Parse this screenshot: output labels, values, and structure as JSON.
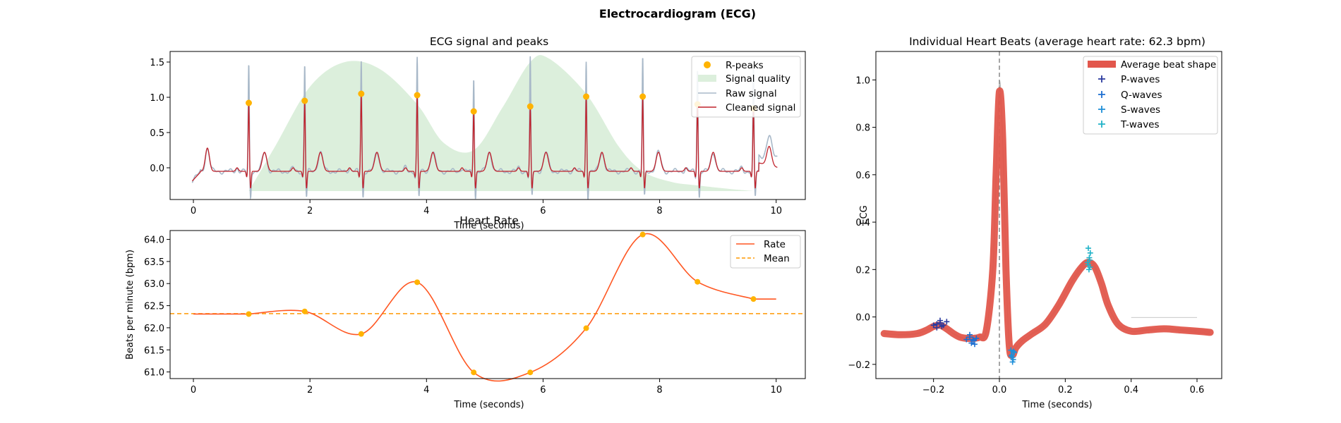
{
  "figure": {
    "suptitle": "Electrocardiogram (ECG)"
  },
  "chart_data": [
    {
      "id": "ecg",
      "type": "line",
      "title": "ECG signal and peaks",
      "xlabel": "Time (seconds)",
      "ylabel": "",
      "xlim": [
        -0.4,
        10.5
      ],
      "ylim": [
        -0.45,
        1.65
      ],
      "xticks": [
        0,
        2,
        4,
        6,
        8,
        10
      ],
      "yticks": [
        0.0,
        0.5,
        1.0,
        1.5
      ],
      "ytick_labels": [
        "0.0",
        "0.5",
        "1.0",
        "1.5"
      ],
      "legend": [
        "R-peaks",
        "Signal quality",
        "Raw signal",
        "Cleaned signal"
      ],
      "legend_position": "upper right",
      "colors": {
        "peaks": "#FFB300",
        "quality": "#dcefdc",
        "raw": "#a8b8c8",
        "clean": "#c0222b"
      },
      "r_peaks": {
        "x": [
          0.95,
          1.91,
          2.88,
          3.84,
          4.81,
          5.78,
          6.74,
          7.71,
          8.65,
          9.61
        ],
        "y": [
          0.92,
          0.95,
          1.05,
          1.03,
          0.8,
          0.87,
          1.01,
          1.01,
          0.9,
          0.84
        ]
      },
      "raw_r_peaks": [
        1.47,
        1.48,
        1.53,
        1.56,
        1.3,
        1.56,
        1.53,
        1.58,
        1.43,
        1.41
      ],
      "quality": {
        "x": [
          0.95,
          1.4,
          2.0,
          2.6,
          3.2,
          3.84,
          4.3,
          4.81,
          5.3,
          5.78,
          6.1,
          6.74,
          7.3,
          7.71,
          8.2,
          8.65,
          9.2,
          9.61
        ],
        "y": [
          -0.33,
          0.3,
          1.15,
          1.5,
          1.4,
          0.9,
          0.35,
          0.25,
          0.85,
          1.5,
          1.55,
          1.05,
          0.3,
          -0.05,
          -0.2,
          -0.25,
          -0.3,
          -0.33
        ]
      }
    },
    {
      "id": "rate",
      "type": "line",
      "title": "Heart Rate",
      "xlabel": "Time (seconds)",
      "ylabel": "Beats per minute (bpm)",
      "xlim": [
        -0.4,
        10.5
      ],
      "ylim": [
        60.85,
        64.2
      ],
      "xticks": [
        0,
        2,
        4,
        6,
        8,
        10
      ],
      "yticks": [
        61.0,
        61.5,
        62.0,
        62.5,
        63.0,
        63.5,
        64.0
      ],
      "ytick_labels": [
        "61.0",
        "61.5",
        "62.0",
        "62.5",
        "63.0",
        "63.5",
        "64.0"
      ],
      "legend": [
        "Rate",
        "Mean"
      ],
      "legend_position": "upper right",
      "mean": 62.32,
      "colors": {
        "rate": "#FF5722",
        "mean": "#FF9800",
        "points": "#FFB300"
      },
      "x": [
        0.95,
        1.91,
        2.88,
        3.84,
        4.81,
        5.78,
        6.74,
        7.71,
        8.65,
        9.61
      ],
      "y": [
        62.31,
        62.37,
        61.86,
        63.03,
        60.99,
        60.99,
        61.99,
        64.11,
        63.04,
        62.65
      ],
      "start_value": 62.31,
      "end_value": 62.65
    },
    {
      "id": "beats",
      "type": "line",
      "title": "Individual Heart Beats (average heart rate: 62.3 bpm)",
      "xlabel": "Time (seconds)",
      "ylabel": "ECG",
      "xlim": [
        -0.375,
        0.675
      ],
      "ylim": [
        -0.26,
        1.12
      ],
      "xticks": [
        -0.2,
        0.0,
        0.2,
        0.4,
        0.6
      ],
      "xtick_labels": [
        "−0.2",
        "0.0",
        "0.2",
        "0.4",
        "0.6"
      ],
      "yticks": [
        -0.2,
        0.0,
        0.2,
        0.4,
        0.6,
        0.8,
        1.0
      ],
      "ytick_labels": [
        "−0.2",
        "0.0",
        "0.2",
        "0.4",
        "0.6",
        "0.8",
        "1.0"
      ],
      "legend": [
        "Average beat shape",
        "P-waves",
        "Q-waves",
        "S-waves",
        "T-waves"
      ],
      "legend_position": "upper right",
      "colors": {
        "average": "#e2574c",
        "p": "#2b3a9e",
        "q": "#1d6fd1",
        "s": "#1f8fd8",
        "t": "#20b2c8",
        "beats": "#b5b5b5",
        "vline": "#777777"
      },
      "average_shape": {
        "x": [
          -0.35,
          -0.3,
          -0.25,
          -0.22,
          -0.2,
          -0.18,
          -0.16,
          -0.14,
          -0.12,
          -0.1,
          -0.08,
          -0.06,
          -0.04,
          -0.02,
          -0.01,
          0.0,
          0.01,
          0.02,
          0.03,
          0.04,
          0.05,
          0.07,
          0.1,
          0.14,
          0.18,
          0.22,
          0.25,
          0.27,
          0.29,
          0.31,
          0.33,
          0.36,
          0.4,
          0.45,
          0.5,
          0.55,
          0.6,
          0.64
        ],
        "y": [
          -0.07,
          -0.075,
          -0.07,
          -0.055,
          -0.04,
          -0.035,
          -0.05,
          -0.07,
          -0.085,
          -0.09,
          -0.09,
          -0.085,
          -0.06,
          0.2,
          0.6,
          0.95,
          0.75,
          0.2,
          -0.12,
          -0.16,
          -0.13,
          -0.1,
          -0.07,
          -0.03,
          0.05,
          0.15,
          0.21,
          0.23,
          0.21,
          0.14,
          0.05,
          -0.03,
          -0.06,
          -0.055,
          -0.05,
          -0.055,
          -0.06,
          -0.065
        ]
      },
      "p_waves": {
        "x": [
          -0.2,
          -0.19,
          -0.18,
          -0.175,
          -0.17,
          -0.16,
          -0.18,
          -0.19
        ],
        "y": [
          -0.035,
          -0.03,
          -0.015,
          -0.04,
          -0.035,
          -0.02,
          -0.025,
          -0.045
        ]
      },
      "q_waves": {
        "x": [
          -0.1,
          -0.09,
          -0.085,
          -0.08,
          -0.075,
          -0.07,
          -0.09,
          -0.08
        ],
        "y": [
          -0.095,
          -0.085,
          -0.11,
          -0.1,
          -0.115,
          -0.09,
          -0.075,
          -0.095
        ]
      },
      "s_waves": {
        "x": [
          0.035,
          0.038,
          0.04,
          0.042,
          0.045,
          0.04,
          0.036,
          0.043
        ],
        "y": [
          -0.14,
          -0.16,
          -0.17,
          -0.18,
          -0.15,
          -0.19,
          -0.165,
          -0.145
        ]
      },
      "t_waves": {
        "x": [
          0.27,
          0.272,
          0.274,
          0.276,
          0.27,
          0.275,
          0.268,
          0.273
        ],
        "y": [
          0.22,
          0.2,
          0.24,
          0.27,
          0.29,
          0.21,
          0.23,
          0.25
        ]
      },
      "beat_offsets": [
        0.02,
        -0.015,
        0.01,
        0.0,
        -0.01,
        0.015,
        -0.02,
        0.005,
        0.012,
        -0.006
      ],
      "vline_x": 0.0
    }
  ]
}
